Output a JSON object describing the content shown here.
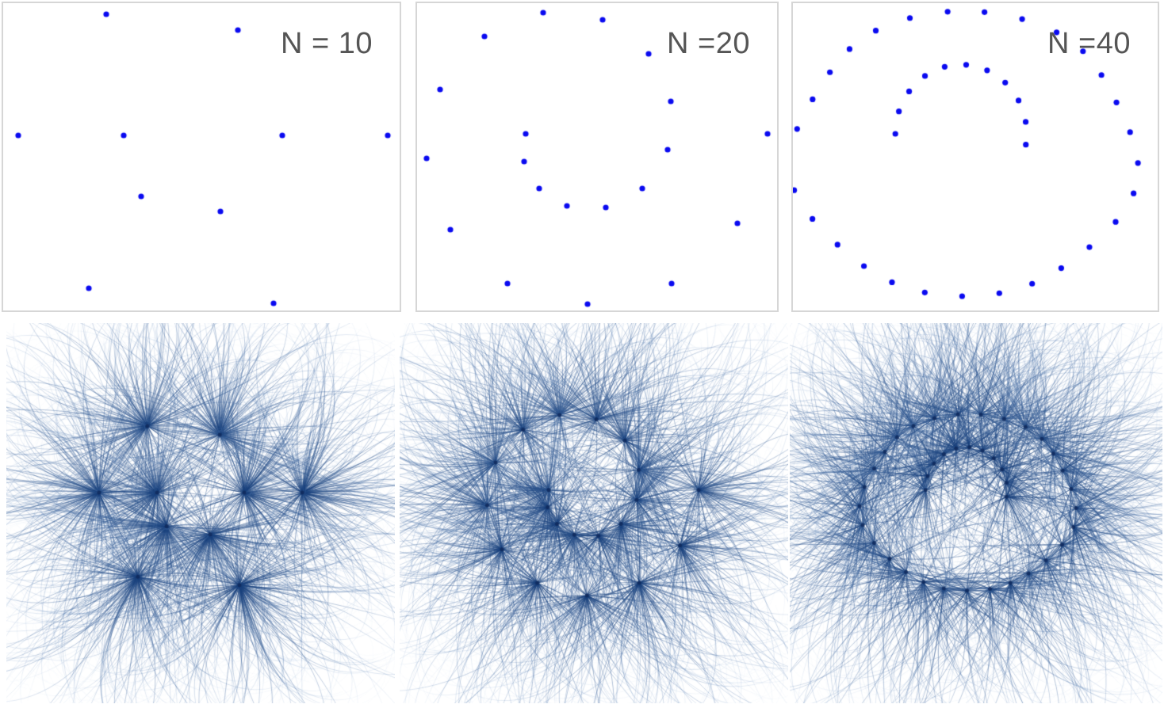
{
  "panels": [
    {
      "label": "N = 10",
      "n": 10
    },
    {
      "label": "N =20",
      "n": 20
    },
    {
      "label": "N =40",
      "n": 40
    }
  ],
  "colors": {
    "point": "#0a0af0",
    "streamline": "#1f5a9a",
    "border": "#d6d6d6",
    "label": "#555555"
  }
}
